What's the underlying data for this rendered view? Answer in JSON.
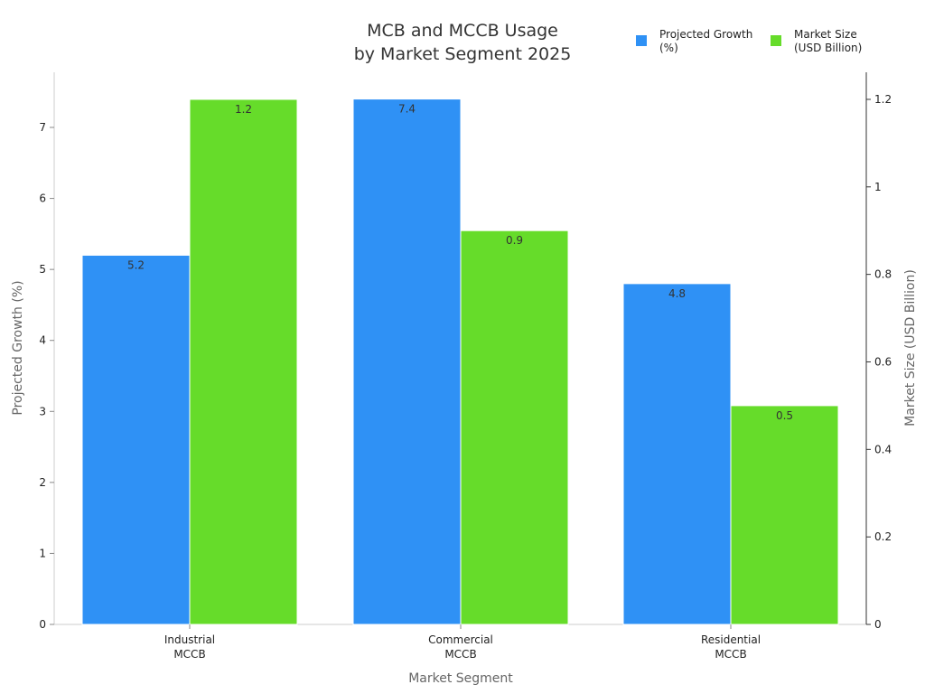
{
  "chart_data": {
    "type": "bar",
    "title": "MCB and MCCB Usage by Market Segment 2025",
    "title_lines": [
      "MCB and MCCB Usage",
      "by Market Segment 2025"
    ],
    "categories": [
      "Industrial MCCB",
      "Commercial MCCB",
      "Residential MCCB"
    ],
    "category_lines": [
      [
        "Industrial",
        "MCCB"
      ],
      [
        "Commercial",
        "MCCB"
      ],
      [
        "Residential",
        "MCCB"
      ]
    ],
    "series": [
      {
        "name": "Projected Growth (%)",
        "legend_lines": [
          "Projected Growth",
          "(%)"
        ],
        "axis": "left",
        "color": "#2f91f5",
        "values": [
          5.2,
          7.4,
          4.8
        ],
        "labels": [
          "5.2",
          "7.4",
          "4.8"
        ]
      },
      {
        "name": "Market Size (USD Billion)",
        "legend_lines": [
          "Market Size",
          "(USD Billion)"
        ],
        "axis": "right",
        "color": "#66dc2a",
        "values": [
          1.2,
          0.9,
          0.5
        ],
        "labels": [
          "1.2",
          "0.9",
          "0.5"
        ]
      }
    ],
    "xlabel": "Market Segment",
    "ylabel": "Projected Growth (%)",
    "ylabel_right": "Market Size (USD Billion)",
    "ylim": [
      0,
      7.78
    ],
    "ylim_right": [
      0,
      1.26
    ],
    "yticks": [
      "0",
      "1",
      "2",
      "3",
      "4",
      "5",
      "6",
      "7"
    ],
    "yticks_right": [
      "0",
      "0.2",
      "0.4",
      "0.6",
      "0.8",
      "1",
      "1.2"
    ],
    "grid": false,
    "legend_position": "top-right"
  }
}
